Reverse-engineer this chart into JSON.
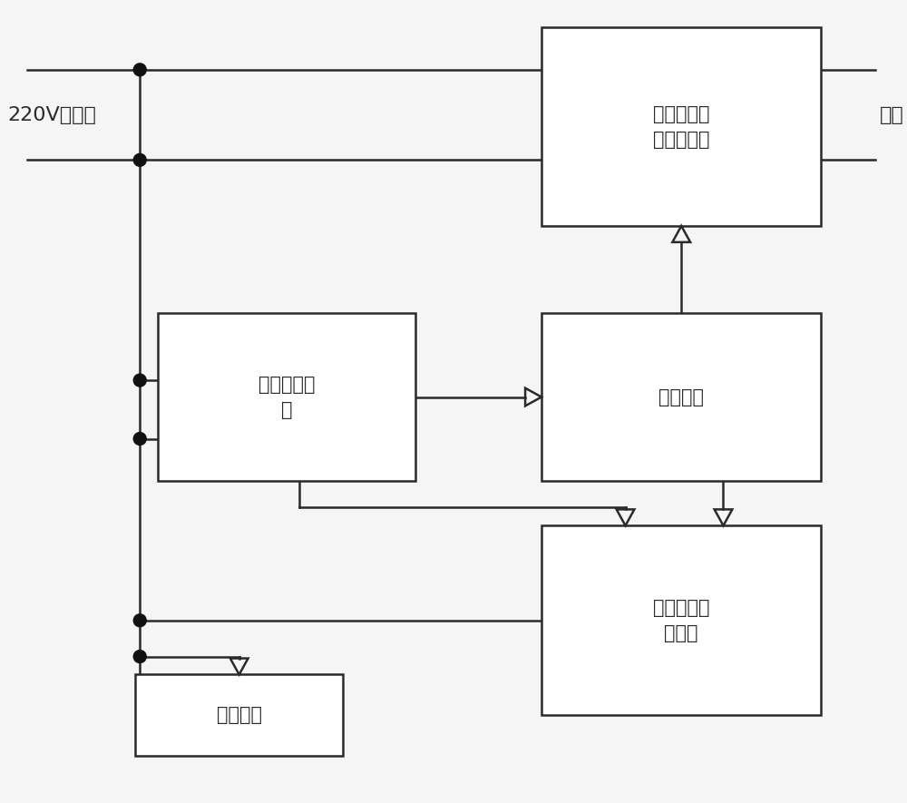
{
  "bg_color": "#f5f5f5",
  "line_color": "#2a2a2a",
  "box_facecolor": "#ffffff",
  "box_edgecolor": "#2a2a2a",
  "dot_color": "#111111",
  "font_color": "#2a2a2a",
  "font_size": 15,
  "lw": 1.8,
  "label_220v": "220V电力线",
  "label_load": "负载",
  "box_mag_label": "磁保持继电\n器开光电路",
  "box_psu_label": "电源转换电\n路",
  "box_ctrl_label": "控制电路",
  "box_plc_label": "电力截波通\n信电路",
  "box_wifi_label": "无线模块",
  "figsize": [
    10.0,
    8.85
  ],
  "dpi": 100
}
